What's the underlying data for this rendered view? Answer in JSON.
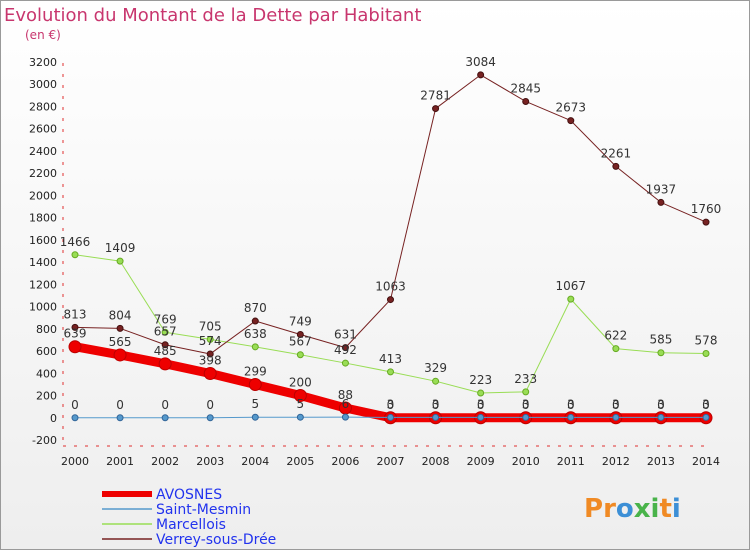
{
  "title": "Evolution du Montant de la Dette par Habitant",
  "unit": "(en €)",
  "logo_text": "Proxiti",
  "chart_data": {
    "type": "line",
    "x": [
      2000,
      2001,
      2002,
      2003,
      2004,
      2005,
      2006,
      2007,
      2008,
      2009,
      2010,
      2011,
      2012,
      2013,
      2014
    ],
    "ylim": [
      -200,
      3200
    ],
    "yticks": [
      -200,
      0,
      200,
      400,
      600,
      800,
      1000,
      1200,
      1400,
      1600,
      1800,
      2000,
      2200,
      2400,
      2600,
      2800,
      3000,
      3200
    ],
    "grid": false,
    "legend_position": "bottom-left",
    "series": [
      {
        "name": "AVOSNES",
        "color": "#ee0000",
        "values": [
          639,
          565,
          485,
          398,
          299,
          200,
          88,
          0,
          0,
          0,
          0,
          0,
          0,
          0,
          0
        ]
      },
      {
        "name": "Saint-Mesmin",
        "color": "#5599cc",
        "values": [
          0,
          0,
          0,
          0,
          5,
          5,
          6,
          3,
          3,
          3,
          3,
          3,
          3,
          3,
          3
        ]
      },
      {
        "name": "Marcellois",
        "color": "#99dd55",
        "values": [
          1466,
          1409,
          769,
          705,
          638,
          567,
          492,
          413,
          329,
          223,
          233,
          1067,
          622,
          585,
          578
        ]
      },
      {
        "name": "Verrey-sous-Drée",
        "color": "#772222",
        "values": [
          813,
          804,
          657,
          574,
          870,
          749,
          631,
          1063,
          2781,
          3084,
          2845,
          2673,
          2261,
          1937,
          1760
        ]
      }
    ]
  }
}
